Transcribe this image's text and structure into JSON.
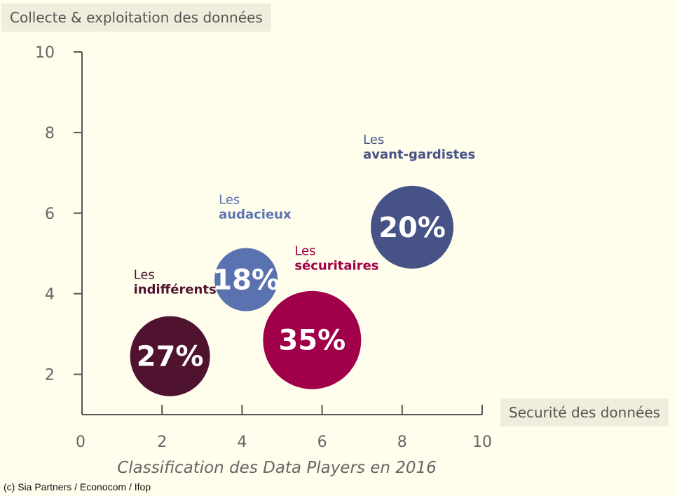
{
  "chart_data": {
    "type": "bubble",
    "caption": "Classification des Data Players en 2016",
    "xlabel": "Securité des données",
    "ylabel": "Collecte & exploitation des données",
    "xlim": [
      0,
      10
    ],
    "ylim": [
      1,
      10
    ],
    "xticks": [
      0,
      2,
      4,
      6,
      8,
      10
    ],
    "yticks": [
      2,
      4,
      6,
      8,
      10
    ],
    "series": [
      {
        "label_top": "Les",
        "label_bottom": "indifférents",
        "x": 2.2,
        "y": 2.45,
        "value": "27%",
        "color": "#4f1330"
      },
      {
        "label_top": "Les",
        "label_bottom": "audacieux",
        "x": 4.1,
        "y": 4.35,
        "value": "18%",
        "color": "#5b72b0"
      },
      {
        "label_top": "Les",
        "label_bottom": "sécuritaires",
        "x": 5.75,
        "y": 2.85,
        "value": "35%",
        "color": "#a0004a"
      },
      {
        "label_top": "Les",
        "label_bottom": "avant-gardistes",
        "x": 8.25,
        "y": 5.65,
        "value": "20%",
        "color": "#475386"
      }
    ]
  },
  "credit": "(c) Sia Partners / Econocom / Ifop"
}
